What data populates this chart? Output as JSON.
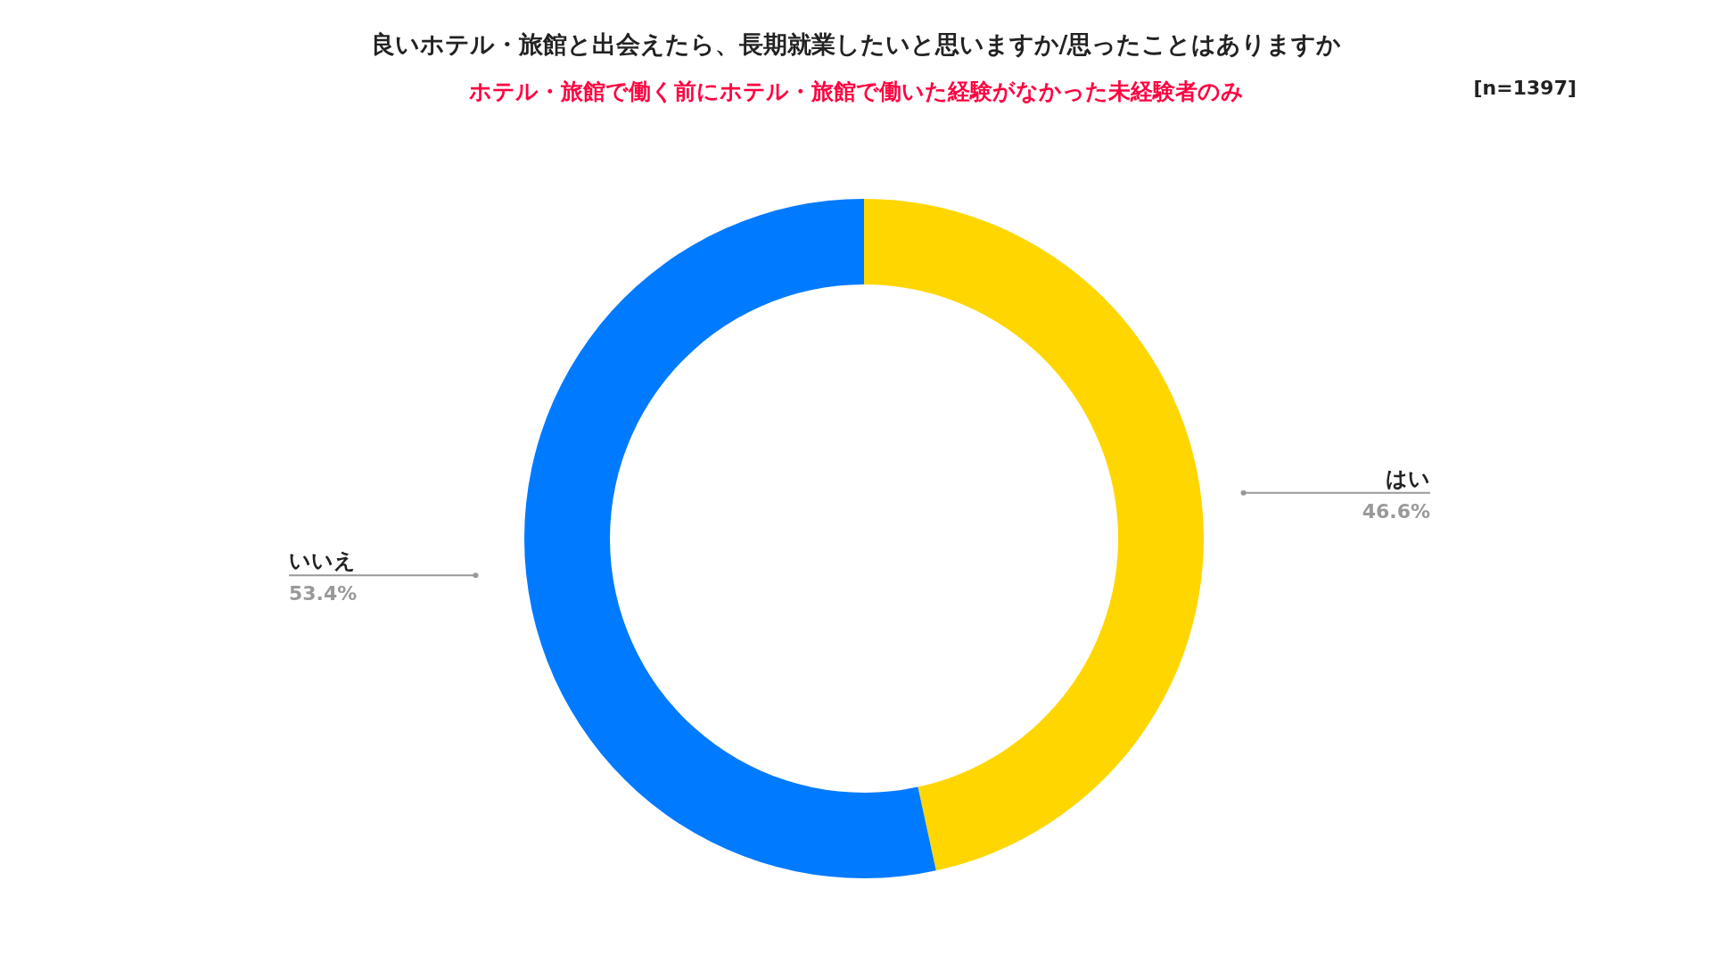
{
  "chart_data": {
    "type": "donut",
    "title": "良いホテル・旅館と出会えたら、長期就業したいと思いますか/思ったことはありますか",
    "subtitle": "ホテル・旅館で働く前にホテル・旅館で働いた経験がなかった未経験者のみ",
    "annotations": [
      "[n=1397]"
    ],
    "categories": [
      "はい",
      "いいえ"
    ],
    "values": [
      46.6,
      53.4
    ],
    "value_labels": [
      "46.6%",
      "53.4%"
    ],
    "colors": [
      "#ffd600",
      "#007aff"
    ]
  }
}
